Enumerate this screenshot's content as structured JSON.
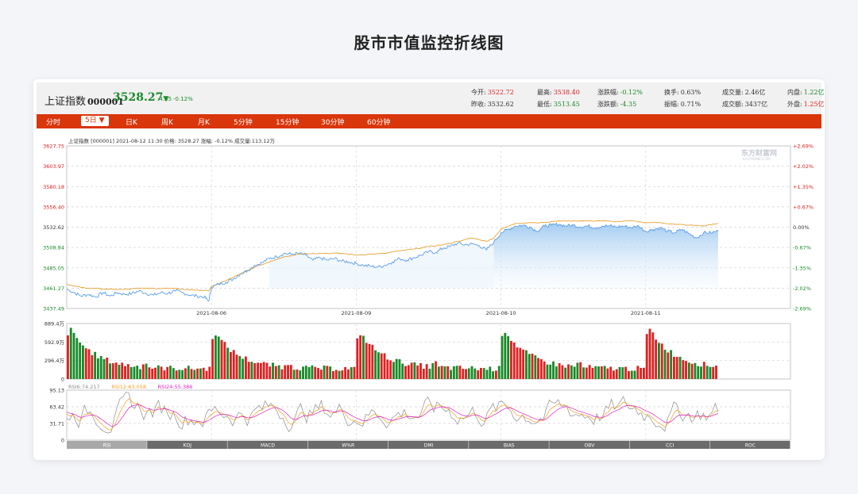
{
  "page_title": "股市市值监控折线图",
  "stock": {
    "name": "上证指数",
    "code": "000001",
    "price": "3528.27",
    "arrow": "▼",
    "change": "-4.35",
    "change_pct": "-0.12%"
  },
  "stats": [
    {
      "label": "今开:",
      "value": "3522.72",
      "color": "red"
    },
    {
      "label": "最高:",
      "value": "3538.40",
      "color": "red"
    },
    {
      "label": "涨跌幅:",
      "value": "-0.12%",
      "color": "green"
    },
    {
      "label": "换手:",
      "value": "0.63%",
      "color": ""
    },
    {
      "label": "成交量:",
      "value": "2.46亿",
      "color": ""
    },
    {
      "label": "内盘:",
      "value": "1.22亿",
      "color": "green"
    },
    {
      "label": "昨收:",
      "value": "3532.62",
      "color": ""
    },
    {
      "label": "最低:",
      "value": "3513.45",
      "color": "green"
    },
    {
      "label": "涨跌额:",
      "value": "-4.35",
      "color": "green"
    },
    {
      "label": "振幅:",
      "value": "0.71%",
      "color": ""
    },
    {
      "label": "成交额:",
      "value": "3437亿",
      "color": ""
    },
    {
      "label": "外盘:",
      "value": "1.25亿",
      "color": "red"
    }
  ],
  "tabs": [
    {
      "label": "分时",
      "active": false
    },
    {
      "label": "5日 ▼",
      "active": true
    },
    {
      "label": "日K",
      "active": false
    },
    {
      "label": "周K",
      "active": false
    },
    {
      "label": "月K",
      "active": false
    },
    {
      "label": "5分钟",
      "active": false
    },
    {
      "label": "15分钟",
      "active": false
    },
    {
      "label": "30分钟",
      "active": false
    },
    {
      "label": "60分钟",
      "active": false
    }
  ],
  "chart_data": {
    "type": "line",
    "header_text": "上证指数 [000001]   2021-08-12 11:30   价格: 3528.27   涨幅: -0.12%   成交量:113.12万",
    "watermark": "东方财富网",
    "watermark_sub": "EASTMONEY.COM",
    "y_ticks": [
      "3627.75",
      "3603.97",
      "3580.18",
      "3556.40",
      "3532.62",
      "3508.84",
      "3485.05",
      "3461.27",
      "3437.49"
    ],
    "y_tick_values": [
      3627.75,
      3603.97,
      3580.18,
      3556.4,
      3532.62,
      3508.84,
      3485.05,
      3461.27,
      3437.49
    ],
    "ylim": [
      3437.49,
      3627.75
    ],
    "pct_ticks": [
      "+2.69%",
      "+2.02%",
      "+1.35%",
      "+0.67%",
      "0.00%",
      "-0.67%",
      "-1.35%",
      "-2.02%",
      "-2.69%"
    ],
    "x_labels": [
      "2021-08-06",
      "2021-08-09",
      "2021-08-10",
      "2021-08-11"
    ],
    "x_label_pos": [
      1,
      2,
      3,
      4
    ],
    "x_range": [
      0,
      5
    ],
    "price_series": [
      [
        0,
        3460
      ],
      [
        0.05,
        3456
      ],
      [
        0.1,
        3452
      ],
      [
        0.15,
        3454
      ],
      [
        0.2,
        3451
      ],
      [
        0.25,
        3456
      ],
      [
        0.3,
        3452
      ],
      [
        0.35,
        3456
      ],
      [
        0.4,
        3454
      ],
      [
        0.45,
        3455
      ],
      [
        0.5,
        3458
      ],
      [
        0.55,
        3455
      ],
      [
        0.6,
        3453
      ],
      [
        0.65,
        3456
      ],
      [
        0.7,
        3455
      ],
      [
        0.75,
        3458
      ],
      [
        0.8,
        3456
      ],
      [
        0.85,
        3453
      ],
      [
        0.9,
        3452
      ],
      [
        0.95,
        3451
      ],
      [
        0.98,
        3446
      ],
      [
        1.0,
        3462
      ],
      [
        1.05,
        3466
      ],
      [
        1.1,
        3468
      ],
      [
        1.15,
        3472
      ],
      [
        1.2,
        3478
      ],
      [
        1.25,
        3482
      ],
      [
        1.3,
        3488
      ],
      [
        1.35,
        3491
      ],
      [
        1.4,
        3496
      ],
      [
        1.45,
        3498
      ],
      [
        1.5,
        3502
      ],
      [
        1.55,
        3501
      ],
      [
        1.6,
        3502
      ],
      [
        1.65,
        3500
      ],
      [
        1.7,
        3494
      ],
      [
        1.75,
        3497
      ],
      [
        1.8,
        3494
      ],
      [
        1.85,
        3496
      ],
      [
        1.9,
        3493
      ],
      [
        1.95,
        3492
      ],
      [
        2.0,
        3490
      ],
      [
        2.05,
        3488
      ],
      [
        2.1,
        3487
      ],
      [
        2.15,
        3486
      ],
      [
        2.2,
        3488
      ],
      [
        2.25,
        3492
      ],
      [
        2.3,
        3496
      ],
      [
        2.35,
        3494
      ],
      [
        2.4,
        3497
      ],
      [
        2.45,
        3500
      ],
      [
        2.5,
        3504
      ],
      [
        2.55,
        3503
      ],
      [
        2.6,
        3508
      ],
      [
        2.65,
        3510
      ],
      [
        2.7,
        3514
      ],
      [
        2.75,
        3512
      ],
      [
        2.8,
        3513
      ],
      [
        2.85,
        3511
      ],
      [
        2.9,
        3506
      ],
      [
        2.95,
        3515
      ],
      [
        3.0,
        3526
      ],
      [
        3.05,
        3530
      ],
      [
        3.1,
        3534
      ],
      [
        3.15,
        3535
      ],
      [
        3.2,
        3533
      ],
      [
        3.25,
        3528
      ],
      [
        3.3,
        3534
      ],
      [
        3.35,
        3535
      ],
      [
        3.4,
        3536
      ],
      [
        3.45,
        3534
      ],
      [
        3.5,
        3535
      ],
      [
        3.55,
        3533
      ],
      [
        3.6,
        3534
      ],
      [
        3.65,
        3532
      ],
      [
        3.7,
        3534
      ],
      [
        3.75,
        3534
      ],
      [
        3.8,
        3533
      ],
      [
        3.85,
        3534
      ],
      [
        3.9,
        3532
      ],
      [
        3.95,
        3534
      ],
      [
        4.0,
        3528
      ],
      [
        4.05,
        3530
      ],
      [
        4.1,
        3532
      ],
      [
        4.15,
        3528
      ],
      [
        4.2,
        3526
      ],
      [
        4.25,
        3530
      ],
      [
        4.3,
        3525
      ],
      [
        4.35,
        3520
      ],
      [
        4.4,
        3526
      ],
      [
        4.45,
        3526
      ],
      [
        4.5,
        3528
      ]
    ],
    "avg_series": [
      [
        0,
        3466
      ],
      [
        0.1,
        3462
      ],
      [
        0.2,
        3461
      ],
      [
        0.3,
        3460
      ],
      [
        0.4,
        3460
      ],
      [
        0.5,
        3461
      ],
      [
        0.6,
        3461
      ],
      [
        0.7,
        3461
      ],
      [
        0.8,
        3460
      ],
      [
        0.9,
        3459
      ],
      [
        0.98,
        3458
      ],
      [
        1.0,
        3463
      ],
      [
        1.1,
        3470
      ],
      [
        1.2,
        3478
      ],
      [
        1.3,
        3486
      ],
      [
        1.4,
        3492
      ],
      [
        1.5,
        3498
      ],
      [
        1.6,
        3501
      ],
      [
        1.7,
        3502
      ],
      [
        1.8,
        3502
      ],
      [
        1.9,
        3502
      ],
      [
        2.0,
        3500
      ],
      [
        2.1,
        3501
      ],
      [
        2.2,
        3502
      ],
      [
        2.3,
        3505
      ],
      [
        2.4,
        3507
      ],
      [
        2.5,
        3510
      ],
      [
        2.6,
        3512
      ],
      [
        2.7,
        3516
      ],
      [
        2.8,
        3520
      ],
      [
        2.9,
        3516
      ],
      [
        2.95,
        3520
      ],
      [
        3.0,
        3530
      ],
      [
        3.1,
        3537
      ],
      [
        3.2,
        3538
      ],
      [
        3.3,
        3538
      ],
      [
        3.4,
        3540
      ],
      [
        3.5,
        3540
      ],
      [
        3.6,
        3540
      ],
      [
        3.7,
        3540
      ],
      [
        3.8,
        3539
      ],
      [
        3.9,
        3540
      ],
      [
        4.0,
        3538
      ],
      [
        4.1,
        3538
      ],
      [
        4.2,
        3536
      ],
      [
        4.3,
        3535
      ],
      [
        4.4,
        3534
      ],
      [
        4.5,
        3537
      ]
    ],
    "volume": {
      "y_ticks": [
        "889.4万",
        "592.9万",
        "296.4万",
        "0"
      ],
      "y_tick_values": [
        889.4,
        592.9,
        296.4,
        0
      ],
      "ylim": [
        0,
        889.4
      ],
      "day_profile_peak": [
        700,
        640,
        650,
        690,
        720
      ]
    },
    "rsi": {
      "legend": [
        {
          "text": "RSI6:74.217",
          "color": "#8c8c8c"
        },
        {
          "text": "RSI12:63.058",
          "color": "#f0a020"
        },
        {
          "text": "RSI24:55.386",
          "color": "#e020c0"
        }
      ],
      "y_ticks": [
        "95.13",
        "63.42",
        "31.71",
        "0"
      ],
      "y_tick_values": [
        95.13,
        63.42,
        31.71,
        0
      ],
      "ylim": [
        0,
        95.13
      ]
    },
    "indicator_tabs": [
      "RSI",
      "KDJ",
      "MACD",
      "W%R",
      "DMI",
      "BIAS",
      "OBV",
      "CCI",
      "ROC"
    ]
  }
}
